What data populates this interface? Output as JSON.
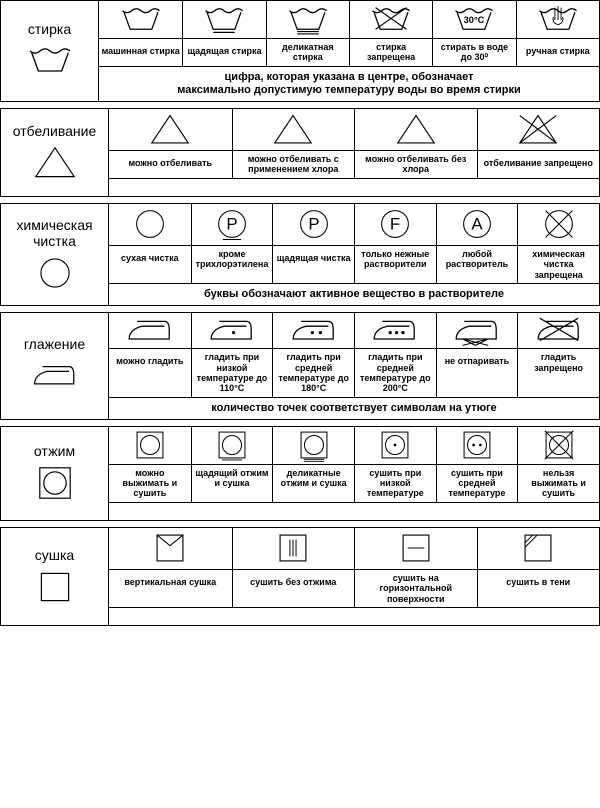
{
  "colors": {
    "stroke": "#000000",
    "bg": "#ffffff"
  },
  "sections": [
    {
      "id": "wash",
      "title": "стирка",
      "headerWidth": 98,
      "headerIcon": "wash",
      "iconHeight": 38,
      "cells": [
        {
          "icon": "wash",
          "label": "машинная стирка"
        },
        {
          "icon": "wash-1line",
          "label": "щадящая стирка"
        },
        {
          "icon": "wash-2line",
          "label": "деликатная стирка"
        },
        {
          "icon": "wash-x",
          "label": "стирка запрещена"
        },
        {
          "icon": "wash-30c",
          "label": "стирать в воде до 30⁰"
        },
        {
          "icon": "wash-hand",
          "label": "ручная стирка"
        }
      ],
      "note": "цифра, которая указана в центре, обозначает\nмаксимально допустимую температуру воды во время стирки"
    },
    {
      "id": "bleach",
      "title": "отбеливание",
      "headerWidth": 108,
      "headerIcon": "triangle",
      "iconHeight": 42,
      "cells": [
        {
          "icon": "triangle",
          "label": "можно отбеливать"
        },
        {
          "icon": "triangle",
          "label": "можно отбеливать с применением хлора"
        },
        {
          "icon": "triangle",
          "label": "можно отбеливать без хлора"
        },
        {
          "icon": "triangle-x",
          "label": "отбеливание запрещено"
        }
      ],
      "note": ""
    },
    {
      "id": "dryclean",
      "title": "химическая чистка",
      "headerWidth": 108,
      "headerIcon": "circle",
      "iconHeight": 42,
      "cells": [
        {
          "icon": "circle",
          "label": "сухая чистка"
        },
        {
          "icon": "circle-P-line",
          "label": "кроме трихлорэтилена"
        },
        {
          "icon": "circle-P",
          "label": "щадящая чистка"
        },
        {
          "icon": "circle-F",
          "label": "только нежные растворители"
        },
        {
          "icon": "circle-A",
          "label": "любой растворитель"
        },
        {
          "icon": "circle-x",
          "label": "химическая чистка запрещена"
        }
      ],
      "note": "буквы обозначают активное вещество в растворителе"
    },
    {
      "id": "iron",
      "title": "глажение",
      "headerWidth": 108,
      "headerIcon": "iron",
      "iconHeight": 36,
      "cells": [
        {
          "icon": "iron",
          "label": "можно гладить"
        },
        {
          "icon": "iron-1dot",
          "label": "гладить при низкой температуре до 110°С"
        },
        {
          "icon": "iron-2dot",
          "label": "гладить при средней температуре до 180°С"
        },
        {
          "icon": "iron-3dot",
          "label": "гладить при средней температуре до 200°С"
        },
        {
          "icon": "iron-nosteam",
          "label": "не отпаривать"
        },
        {
          "icon": "iron-x",
          "label": "гладить запрещено"
        }
      ],
      "note": "количество точек соответствует символам на утюге"
    },
    {
      "id": "spin",
      "title": "отжим",
      "headerWidth": 108,
      "headerIcon": "sq-circle",
      "iconHeight": 38,
      "cells": [
        {
          "icon": "sq-circle",
          "label": "можно выжимать и сушить"
        },
        {
          "icon": "sq-circle-1line",
          "label": "щадящий отжим и сушка"
        },
        {
          "icon": "sq-circle-2line",
          "label": "деликатные отжим и сушка"
        },
        {
          "icon": "sq-circle-1dot",
          "label": "сушить при низкой температуре"
        },
        {
          "icon": "sq-circle-2dot",
          "label": "сушить при средней температуре"
        },
        {
          "icon": "sq-circle-x",
          "label": "нельзя выжимать и сушить"
        }
      ],
      "note": ""
    },
    {
      "id": "dry",
      "title": "сушка",
      "headerWidth": 108,
      "headerIcon": "square",
      "iconHeight": 42,
      "cells": [
        {
          "icon": "sq-envelope",
          "label": "вертикальная сушка"
        },
        {
          "icon": "sq-3vlines",
          "label": "сушить без отжима"
        },
        {
          "icon": "sq-hline",
          "label": "сушить на горизонтальной поверхности"
        },
        {
          "icon": "sq-diag",
          "label": "сушить в тени"
        }
      ],
      "note": ""
    }
  ]
}
